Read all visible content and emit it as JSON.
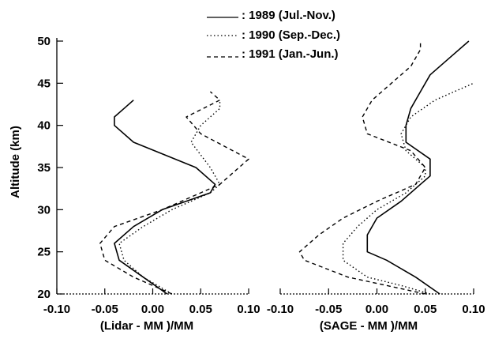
{
  "legend": {
    "position": "top-right",
    "entries": [
      {
        "label": ": 1989 (Jul.-Nov.)",
        "dash": "solid"
      },
      {
        "label": ": 1990 (Sep.-Dec.)",
        "dash": "dotted"
      },
      {
        "label": ": 1991 (Jan.-Jun.)",
        "dash": "dashed"
      }
    ]
  },
  "y_axis": {
    "label": "Altitude (km)",
    "ticks": [
      20,
      25,
      30,
      35,
      40,
      45,
      50
    ],
    "ylim": [
      20,
      50
    ]
  },
  "colors": {
    "line": "#000000",
    "background": "#ffffff"
  },
  "chart_data": [
    {
      "type": "line",
      "xlabel": "(Lidar - MM )/MM",
      "ylabel": "Altitude (km)",
      "xlim": [
        -0.1,
        0.1
      ],
      "ylim": [
        20,
        50
      ],
      "x_ticks": [
        "-0.10",
        "-0.05",
        "0.00",
        "0.05",
        "0.10"
      ],
      "x_tick_values": [
        -0.1,
        -0.05,
        0.0,
        0.05,
        0.1
      ],
      "grid": false,
      "series": [
        {
          "name": "1989 (Jul.-Nov.)",
          "style": "solid",
          "points": [
            [
              0.015,
              20
            ],
            [
              -0.01,
              22
            ],
            [
              -0.035,
              24
            ],
            [
              -0.04,
              26
            ],
            [
              -0.02,
              28
            ],
            [
              0.01,
              30
            ],
            [
              0.06,
              32
            ],
            [
              0.065,
              33
            ],
            [
              0.045,
              35
            ],
            [
              -0.02,
              38
            ],
            [
              -0.04,
              40
            ],
            [
              -0.04,
              41
            ],
            [
              -0.03,
              42
            ],
            [
              -0.02,
              43
            ]
          ]
        },
        {
          "name": "1990 (Sep.-Dec.)",
          "style": "dotted",
          "points": [
            [
              0.02,
              20
            ],
            [
              -0.01,
              22
            ],
            [
              -0.03,
              24
            ],
            [
              -0.035,
              26
            ],
            [
              -0.01,
              28
            ],
            [
              0.02,
              30
            ],
            [
              0.06,
              32
            ],
            [
              0.07,
              33
            ],
            [
              0.06,
              35
            ],
            [
              0.04,
              38
            ],
            [
              0.05,
              40
            ],
            [
              0.06,
              41
            ],
            [
              0.07,
              42
            ],
            [
              0.07,
              43
            ]
          ]
        },
        {
          "name": "1991 (Jan.-Jun.)",
          "style": "dashed",
          "points": [
            [
              0.02,
              20
            ],
            [
              -0.02,
              22
            ],
            [
              -0.05,
              24
            ],
            [
              -0.055,
              26
            ],
            [
              -0.04,
              28
            ],
            [
              0.01,
              30
            ],
            [
              0.05,
              32
            ],
            [
              0.07,
              33
            ],
            [
              0.1,
              36
            ],
            [
              0.05,
              39
            ],
            [
              0.035,
              41
            ],
            [
              0.07,
              43
            ],
            [
              0.06,
              44
            ]
          ]
        }
      ]
    },
    {
      "type": "line",
      "xlabel": "(SAGE - MM )/MM",
      "ylabel": "Altitude (km)",
      "xlim": [
        -0.1,
        0.1
      ],
      "ylim": [
        20,
        50
      ],
      "x_ticks": [
        "-0.10",
        "-0.05",
        "0.00",
        "0.05",
        "0.10"
      ],
      "x_tick_values": [
        -0.1,
        -0.05,
        0.0,
        0.05,
        0.1
      ],
      "grid": false,
      "series": [
        {
          "name": "1989 (Jul.-Nov.)",
          "style": "solid",
          "points": [
            [
              0.065,
              20
            ],
            [
              0.04,
              22
            ],
            [
              0.01,
              24
            ],
            [
              -0.01,
              25
            ],
            [
              -0.01,
              27
            ],
            [
              0.0,
              29
            ],
            [
              0.025,
              31
            ],
            [
              0.045,
              33
            ],
            [
              0.055,
              34
            ],
            [
              0.055,
              36
            ],
            [
              0.03,
              38
            ],
            [
              0.03,
              40
            ],
            [
              0.035,
              42
            ],
            [
              0.045,
              44
            ],
            [
              0.055,
              46
            ],
            [
              0.075,
              48
            ],
            [
              0.095,
              50
            ]
          ]
        },
        {
          "name": "1990 (Sep.-Dec.)",
          "style": "dotted",
          "points": [
            [
              0.055,
              20
            ],
            [
              0.025,
              21
            ],
            [
              -0.01,
              22
            ],
            [
              -0.035,
              24
            ],
            [
              -0.035,
              26
            ],
            [
              -0.02,
              28
            ],
            [
              0.0,
              30
            ],
            [
              0.03,
              32
            ],
            [
              0.05,
              34
            ],
            [
              0.05,
              35
            ],
            [
              0.03,
              37
            ],
            [
              0.025,
              39
            ],
            [
              0.035,
              41
            ],
            [
              0.06,
              43
            ],
            [
              0.1,
              45
            ]
          ]
        },
        {
          "name": "1991 (Jan.-Jun.)",
          "style": "dashed",
          "points": [
            [
              0.05,
              20
            ],
            [
              0.01,
              21
            ],
            [
              -0.03,
              22
            ],
            [
              -0.075,
              24
            ],
            [
              -0.08,
              25
            ],
            [
              -0.06,
              27
            ],
            [
              -0.035,
              29
            ],
            [
              0.0,
              31
            ],
            [
              0.04,
              33
            ],
            [
              0.05,
              35
            ],
            [
              0.035,
              37
            ],
            [
              -0.01,
              39
            ],
            [
              -0.015,
              41
            ],
            [
              -0.005,
              43
            ],
            [
              0.015,
              45
            ],
            [
              0.035,
              47
            ],
            [
              0.045,
              49
            ],
            [
              0.045,
              50
            ]
          ]
        }
      ]
    }
  ]
}
